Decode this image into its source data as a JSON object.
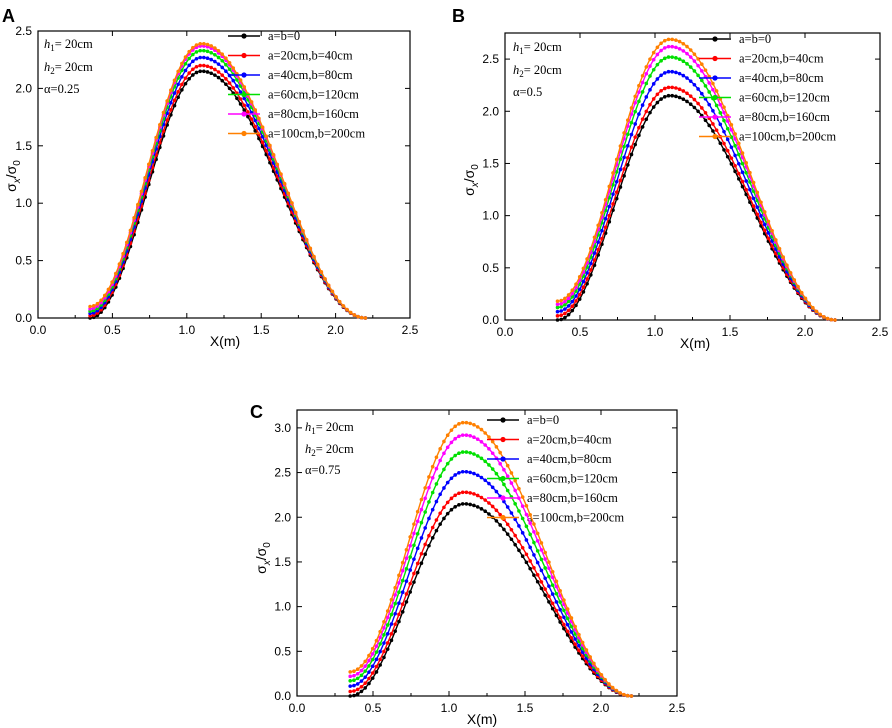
{
  "colors": [
    "#000000",
    "#ff0000",
    "#0000ff",
    "#00e000",
    "#ff00ff",
    "#ff8000"
  ],
  "legend_entries": [
    "a=b=0",
    "a=20cm,b=40cm",
    "a=40cm,b=80cm",
    "a=60cm,b=120cm",
    "a=80cm,b=160cm",
    "a=100cm,b=200cm"
  ],
  "chart_data": [
    {
      "panel": "A",
      "type": "line",
      "xlabel": "X(m)",
      "ylabel_main": "σ",
      "ylabel_sub1": "x",
      "ylabel_mid": "/σ",
      "ylabel_sub2": "0",
      "xlim": [
        0.0,
        2.5
      ],
      "ylim": [
        0.0,
        2.5
      ],
      "xticks": [
        "0.0",
        "0.5",
        "1.0",
        "1.5",
        "2.0",
        "2.5"
      ],
      "yticks": [
        "0.0",
        "0.5",
        "1.0",
        "1.5",
        "2.0",
        "2.5"
      ],
      "params": {
        "h1_var": "h",
        "h1_sub": "1",
        "h1_val": "= 20cm",
        "h2_var": "h",
        "h2_sub": "2",
        "h2_val": "= 20cm",
        "alpha": "α=0.25"
      },
      "x_start": 0.35,
      "x_end": 2.2,
      "x_peak": 1.1,
      "series": [
        {
          "name": "a=b=0",
          "peak": 2.15,
          "start": 0.0
        },
        {
          "name": "a=20cm,b=40cm",
          "peak": 2.2,
          "start": 0.02
        },
        {
          "name": "a=40cm,b=80cm",
          "peak": 2.27,
          "start": 0.04
        },
        {
          "name": "a=60cm,b=120cm",
          "peak": 2.33,
          "start": 0.06
        },
        {
          "name": "a=80cm,b=160cm",
          "peak": 2.37,
          "start": 0.08
        },
        {
          "name": "a=100cm,b=200cm",
          "peak": 2.39,
          "start": 0.1
        }
      ]
    },
    {
      "panel": "B",
      "type": "line",
      "xlabel": "X(m)",
      "ylabel_main": "σ",
      "ylabel_sub1": "x",
      "ylabel_mid": "/σ",
      "ylabel_sub2": "0",
      "xlim": [
        0.0,
        2.5
      ],
      "ylim": [
        0.0,
        2.75
      ],
      "xticks": [
        "0.0",
        "0.5",
        "1.0",
        "1.5",
        "2.0",
        "2.5"
      ],
      "yticks": [
        "0.0",
        "0.5",
        "1.0",
        "1.5",
        "2.0",
        "2.5"
      ],
      "params": {
        "h1_var": "h",
        "h1_sub": "1",
        "h1_val": "= 20cm",
        "h2_var": "h",
        "h2_sub": "2",
        "h2_val": "= 20cm",
        "alpha": "α=0.5"
      },
      "x_start": 0.35,
      "x_end": 2.2,
      "x_peak": 1.1,
      "series": [
        {
          "name": "a=b=0",
          "peak": 2.15,
          "start": 0.0
        },
        {
          "name": "a=20cm,b=40cm",
          "peak": 2.23,
          "start": 0.04
        },
        {
          "name": "a=40cm,b=80cm",
          "peak": 2.38,
          "start": 0.08
        },
        {
          "name": "a=60cm,b=120cm",
          "peak": 2.52,
          "start": 0.12
        },
        {
          "name": "a=80cm,b=160cm",
          "peak": 2.62,
          "start": 0.15
        },
        {
          "name": "a=100cm,b=200cm",
          "peak": 2.69,
          "start": 0.18
        }
      ]
    },
    {
      "panel": "C",
      "type": "line",
      "xlabel": "X(m)",
      "ylabel_main": "σ",
      "ylabel_sub1": "x",
      "ylabel_mid": "/σ",
      "ylabel_sub2": "0",
      "xlim": [
        0.0,
        2.5
      ],
      "ylim": [
        0.0,
        3.2
      ],
      "xticks": [
        "0.0",
        "0.5",
        "1.0",
        "1.5",
        "2.0",
        "2.5"
      ],
      "yticks": [
        "0.0",
        "0.5",
        "1.0",
        "1.5",
        "2.0",
        "2.5",
        "3.0"
      ],
      "params": {
        "h1_var": "h",
        "h1_sub": "1",
        "h1_val": "= 20cm",
        "h2_var": "h",
        "h2_sub": "2",
        "h2_val": "= 20cm",
        "alpha": "α=0.75"
      },
      "x_start": 0.35,
      "x_end": 2.2,
      "x_peak": 1.1,
      "series": [
        {
          "name": "a=b=0",
          "peak": 2.15,
          "start": 0.0
        },
        {
          "name": "a=20cm,b=40cm",
          "peak": 2.28,
          "start": 0.05
        },
        {
          "name": "a=40cm,b=80cm",
          "peak": 2.51,
          "start": 0.11
        },
        {
          "name": "a=60cm,b=120cm",
          "peak": 2.73,
          "start": 0.17
        },
        {
          "name": "a=80cm,b=160cm",
          "peak": 2.92,
          "start": 0.22
        },
        {
          "name": "a=100cm,b=200cm",
          "peak": 3.06,
          "start": 0.27
        }
      ]
    }
  ]
}
